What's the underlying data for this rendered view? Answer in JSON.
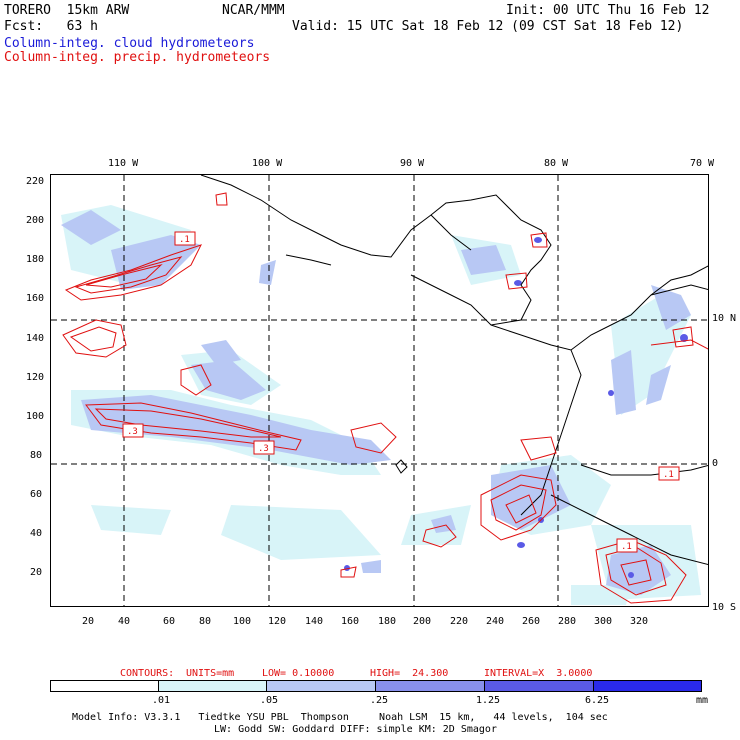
{
  "header": {
    "model": "TORERO  15km ARW",
    "center": "NCAR/MMM",
    "init": "Init: 00 UTC Thu 16 Feb 12",
    "fcst": "Fcst:   63 h",
    "valid": "Valid: 15 UTC Sat 18 Feb 12 (09 CST Sat 18 Feb 12)",
    "field1": "Column-integ. cloud hydrometeors",
    "field2": "Column-integ. precip. hydrometeors"
  },
  "colors": {
    "field1": "#1a1ad8",
    "field2": "#e01010",
    "contour": "#e01010",
    "shade_levels": [
      "#ffffff",
      "#d8f4f8",
      "#b8c8f4",
      "#8890ec",
      "#5a5ae6",
      "#2a2aea"
    ]
  },
  "axes": {
    "top_lon": [
      "110 W",
      "100 W",
      "90 W",
      "80 W",
      "70 W"
    ],
    "right_lat": [
      "10 N",
      "0",
      "10 S"
    ],
    "left_y": [
      "220",
      "200",
      "180",
      "160",
      "140",
      "120",
      "100",
      "80",
      "60",
      "40",
      "20"
    ],
    "bottom_x": [
      "20",
      "40",
      "60",
      "80",
      "100",
      "120",
      "140",
      "160",
      "180",
      "200",
      "220",
      "240",
      "260",
      "280",
      "300",
      "320"
    ]
  },
  "contour_labels": [
    ".1",
    ".3",
    ".3",
    ".1",
    ".1"
  ],
  "contours_info": {
    "label": "CONTOURS:",
    "units": "UNITS=mm",
    "low": "LOW= 0.10000",
    "high": "HIGH=  24.300",
    "interval": "INTERVAL=X  3.0000"
  },
  "legend": {
    "ticks": [
      ".01",
      ".05",
      ".25",
      "1.25",
      "6.25"
    ],
    "units": "mm"
  },
  "footer": {
    "line1": "Model Info: V3.3.1   Tiedtke YSU PBL  Thompson     Noah LSM  15 km,   44 levels,  104 sec",
    "line2": "LW: Godd SW: Goddard DIFF: simple KM: 2D Smagor"
  }
}
